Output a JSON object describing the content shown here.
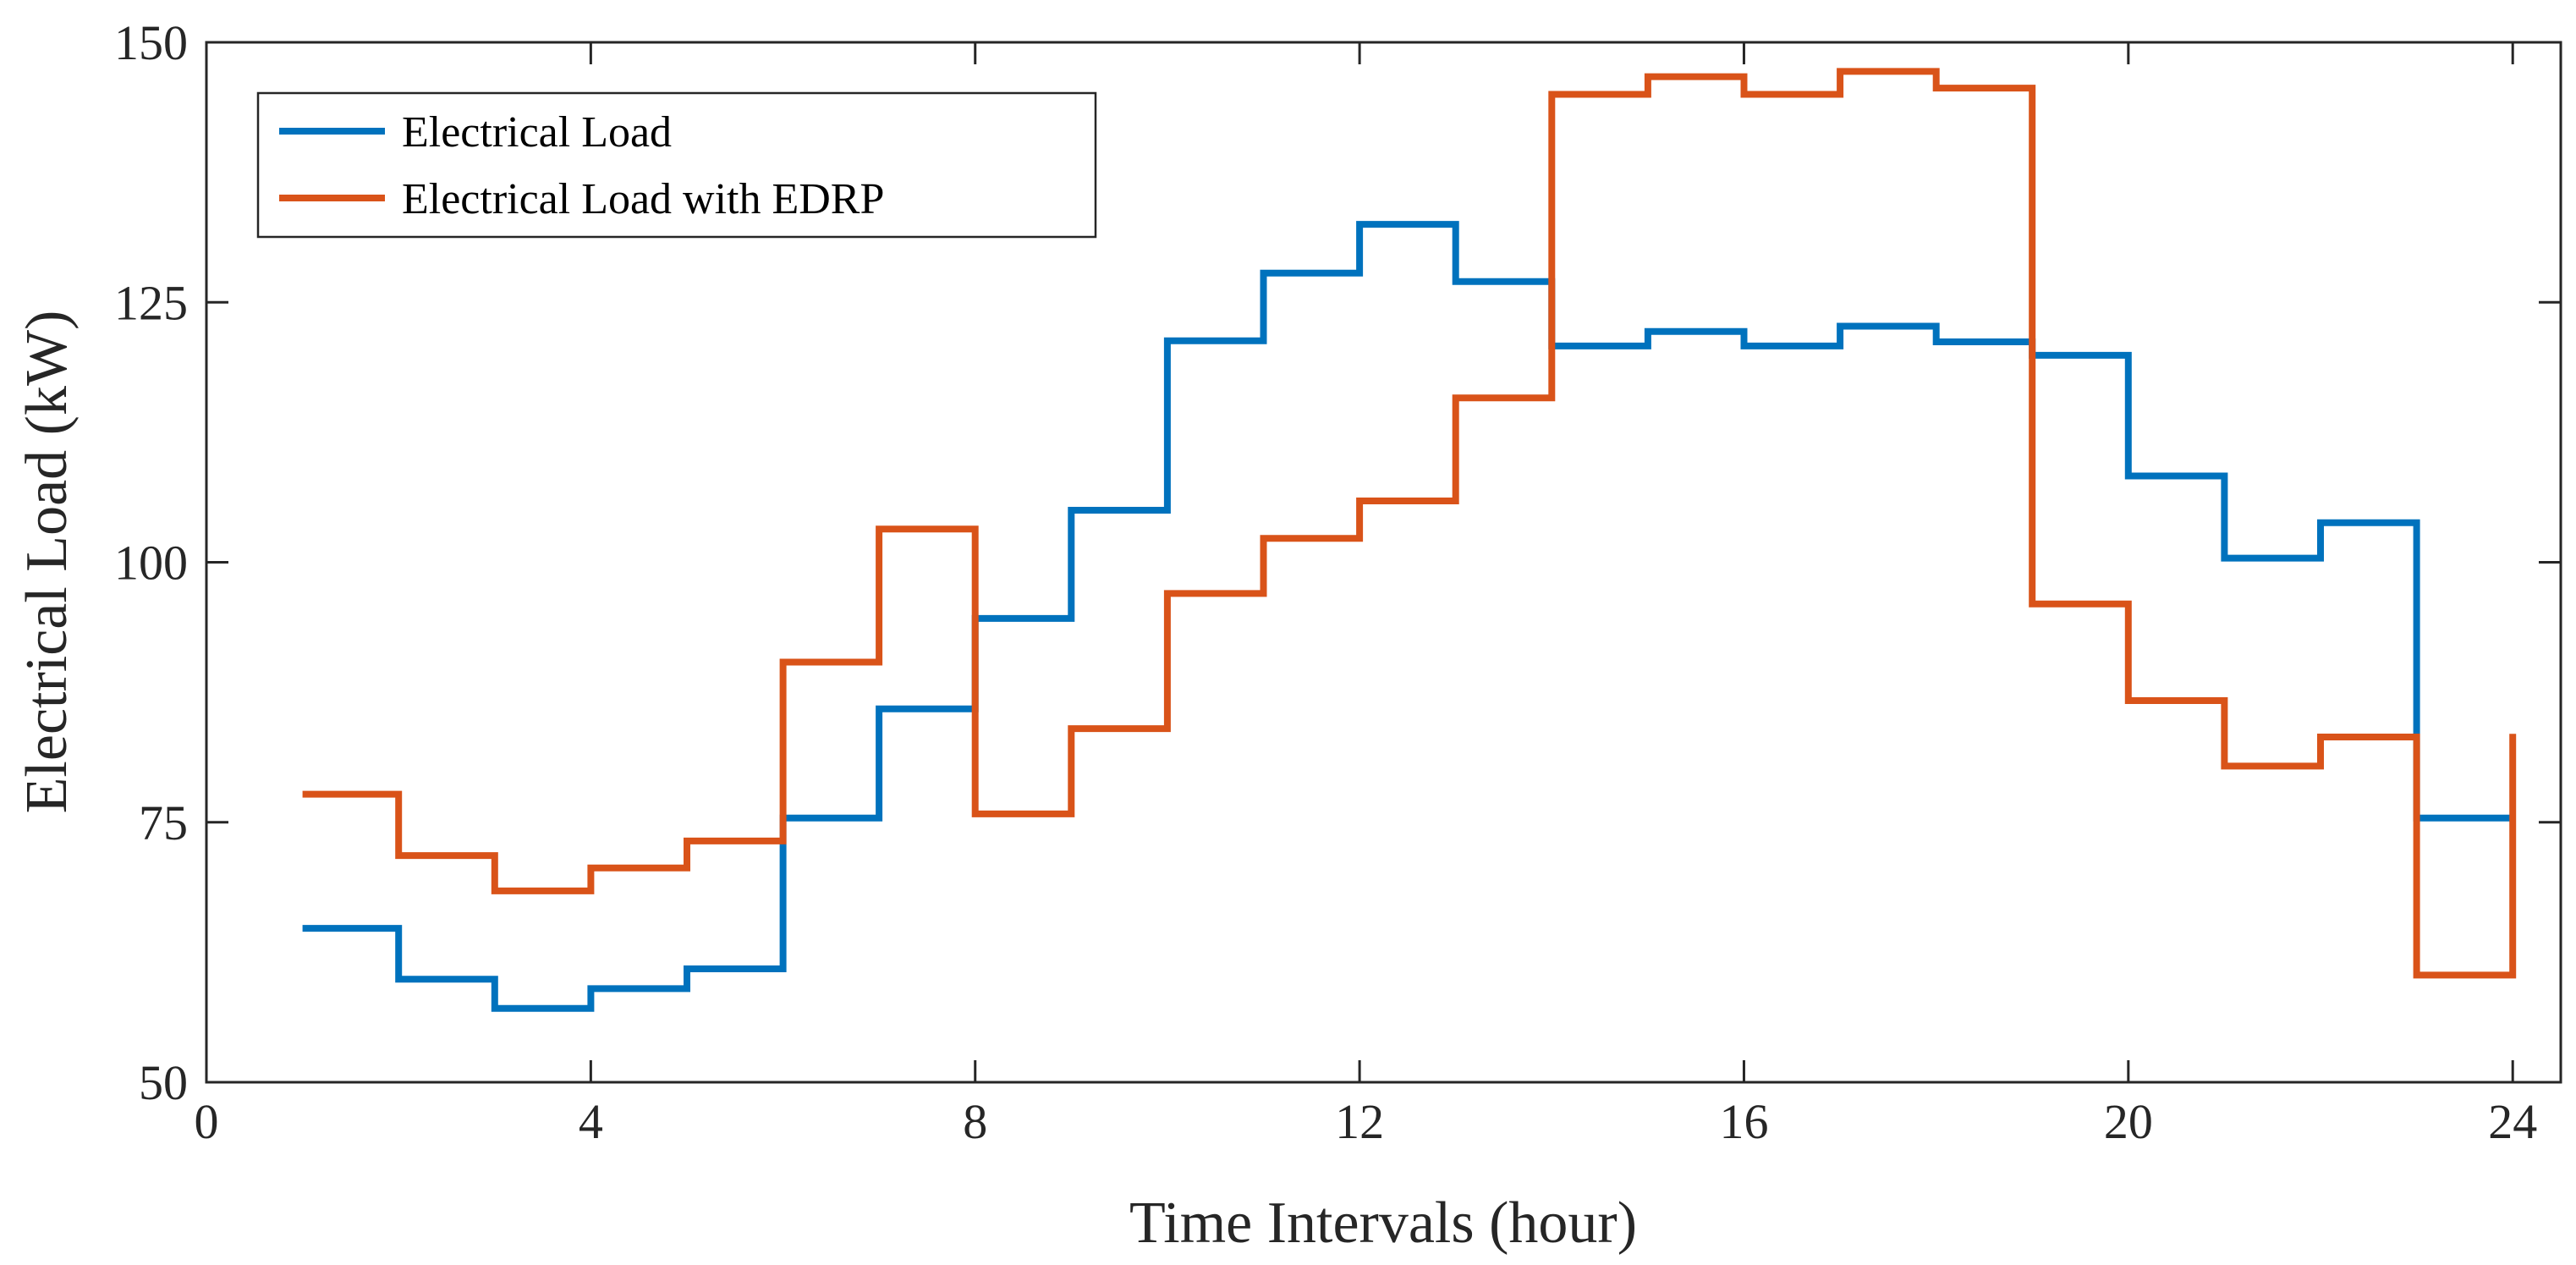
{
  "chart_data": {
    "type": "line",
    "step": "post",
    "title": "",
    "xlabel": "Time Intervals (hour)",
    "ylabel": "Electrical Load (kW)",
    "xlim": [
      0,
      24.5
    ],
    "ylim": [
      50,
      150
    ],
    "xticks": [
      0,
      4,
      8,
      12,
      16,
      20,
      24
    ],
    "yticks": [
      50,
      75,
      100,
      125,
      150
    ],
    "legend_position": "top-left",
    "x": [
      1,
      2,
      3,
      4,
      5,
      6,
      7,
      8,
      9,
      10,
      11,
      12,
      13,
      14,
      15,
      16,
      17,
      18,
      19,
      20,
      21,
      22,
      23,
      24
    ],
    "series": [
      {
        "name": "Electrical Load",
        "color": "#0072BD",
        "values": [
          64.8,
          59.9,
          57.1,
          59.0,
          60.9,
          75.4,
          85.9,
          94.6,
          105.0,
          121.3,
          127.8,
          132.5,
          127.0,
          120.8,
          122.2,
          120.8,
          122.7,
          121.2,
          119.9,
          108.3,
          100.4,
          103.8,
          75.4,
          75.4
        ]
      },
      {
        "name": "Electrical Load with EDRP",
        "color": "#D95319",
        "values": [
          77.7,
          71.8,
          68.4,
          70.6,
          73.2,
          90.4,
          103.2,
          75.8,
          84.0,
          97.0,
          102.3,
          105.9,
          115.8,
          145.0,
          146.7,
          145.0,
          147.2,
          145.6,
          96.0,
          86.7,
          80.4,
          83.2,
          60.3,
          83.5
        ]
      }
    ]
  }
}
